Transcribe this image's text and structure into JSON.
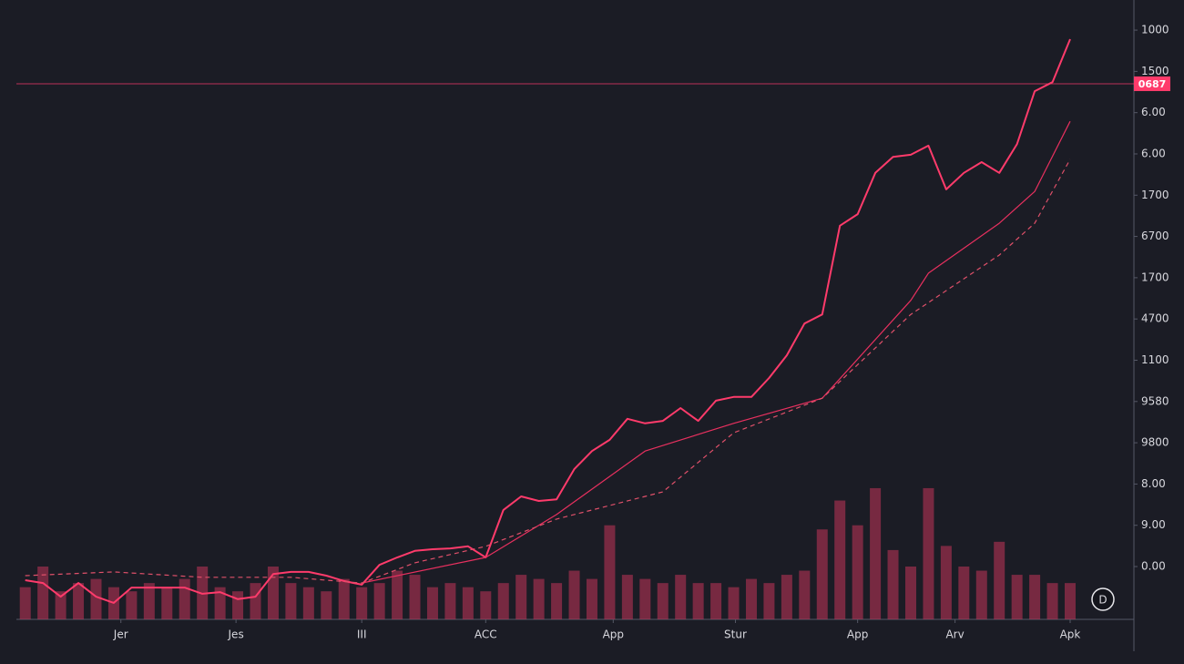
{
  "chart_data": {
    "type": "line",
    "xlim": [
      -0.5,
      62.6
    ],
    "ylim": [
      -0.28,
      14.73
    ],
    "xticks": [
      {
        "value": 5.4,
        "label": "Jer"
      },
      {
        "value": 11.9,
        "label": "Jes"
      },
      {
        "value": 19,
        "label": "III"
      },
      {
        "value": 26,
        "label": "ACC"
      },
      {
        "value": 33.2,
        "label": "App"
      },
      {
        "value": 40.1,
        "label": "Stur"
      },
      {
        "value": 47,
        "label": "App"
      },
      {
        "value": 52.5,
        "label": "Arv"
      },
      {
        "value": 59,
        "label": "Apk"
      }
    ],
    "yticks": [
      {
        "value": 1,
        "label": "0.00"
      },
      {
        "value": 2,
        "label": "9.00"
      },
      {
        "value": 3,
        "label": "8.00"
      },
      {
        "value": 4,
        "label": "9800"
      },
      {
        "value": 5,
        "label": "9580"
      },
      {
        "value": 6,
        "label": "1100"
      },
      {
        "value": 7,
        "label": "4700"
      },
      {
        "value": 8,
        "label": "1700"
      },
      {
        "value": 9,
        "label": "6700"
      },
      {
        "value": 10,
        "label": "1700"
      },
      {
        "value": 11,
        "label": "6.00"
      },
      {
        "value": 12,
        "label": "6.00"
      },
      {
        "value": 13,
        "label": "1500"
      },
      {
        "value": 14,
        "label": "1000"
      }
    ],
    "price_line": {
      "value": 12.7,
      "label": "0687",
      "color": "#ff3b6b"
    },
    "button": "D",
    "volume": {
      "color": "#c2345a",
      "values": [
        0.5,
        1.0,
        0.4,
        0.6,
        0.7,
        0.5,
        0.4,
        0.6,
        0.5,
        0.7,
        1.0,
        0.5,
        0.4,
        0.6,
        1.0,
        0.6,
        0.5,
        0.4,
        0.7,
        0.5,
        0.6,
        0.9,
        0.8,
        0.5,
        0.6,
        0.5,
        0.4,
        0.6,
        0.8,
        0.7,
        0.6,
        0.9,
        0.7,
        2.0,
        0.8,
        0.7,
        0.6,
        0.8,
        0.6,
        0.6,
        0.5,
        0.7,
        0.6,
        0.8,
        0.9,
        1.9,
        2.6,
        2.0,
        2.9,
        1.4,
        1.0,
        2.9,
        1.5,
        1.0,
        0.9,
        1.6,
        0.8,
        0.8,
        0.6,
        0.6
      ]
    },
    "series": [
      {
        "color": "#ff3b6b",
        "dash": false,
        "width": 2,
        "x": [
          0,
          1,
          2,
          3,
          4,
          5,
          6,
          7,
          8,
          9,
          10,
          11,
          12,
          13,
          14,
          15,
          16,
          17,
          18,
          19,
          20,
          21,
          22,
          23,
          24,
          25,
          26,
          27,
          28,
          29,
          30,
          31,
          32,
          33,
          34,
          35,
          36,
          37,
          38,
          39,
          40,
          41,
          42,
          43,
          44,
          45,
          46,
          47,
          48,
          49,
          50,
          51,
          52,
          53,
          54,
          55,
          56,
          57,
          58,
          59
        ],
        "values": [
          0.67,
          0.6,
          0.27,
          0.6,
          0.27,
          0.12,
          0.49,
          0.49,
          0.49,
          0.49,
          0.34,
          0.38,
          0.21,
          0.27,
          0.82,
          0.87,
          0.87,
          0.78,
          0.65,
          0.56,
          1.04,
          1.22,
          1.38,
          1.42,
          1.44,
          1.49,
          1.22,
          2.37,
          2.7,
          2.59,
          2.63,
          3.36,
          3.8,
          4.07,
          4.58,
          4.47,
          4.53,
          4.84,
          4.53,
          5.02,
          5.11,
          5.11,
          5.57,
          6.12,
          6.89,
          7.11,
          9.26,
          9.54,
          10.54,
          10.93,
          10.98,
          11.2,
          10.14,
          10.54,
          10.8,
          10.54,
          11.24,
          12.52,
          12.74,
          13.78
        ]
      },
      {
        "color": "#e8305f",
        "dash": false,
        "width": 1.2,
        "x": [
          19,
          26,
          30,
          35,
          40,
          45,
          50,
          51,
          55,
          57,
          59
        ],
        "values": [
          0.6,
          1.22,
          2.26,
          3.8,
          4.47,
          5.08,
          7.45,
          8.11,
          9.32,
          10.09,
          11.79
        ]
      },
      {
        "color": "#e0506a",
        "dash": true,
        "width": 1.2,
        "x": [
          0,
          5,
          10,
          15,
          19,
          22,
          26,
          30,
          36,
          40,
          45,
          50,
          55,
          57,
          59
        ],
        "values": [
          0.78,
          0.87,
          0.74,
          0.74,
          0.6,
          1.09,
          1.49,
          2.15,
          2.81,
          4.24,
          5.08,
          7.11,
          8.55,
          9.32,
          10.87
        ]
      }
    ]
  }
}
